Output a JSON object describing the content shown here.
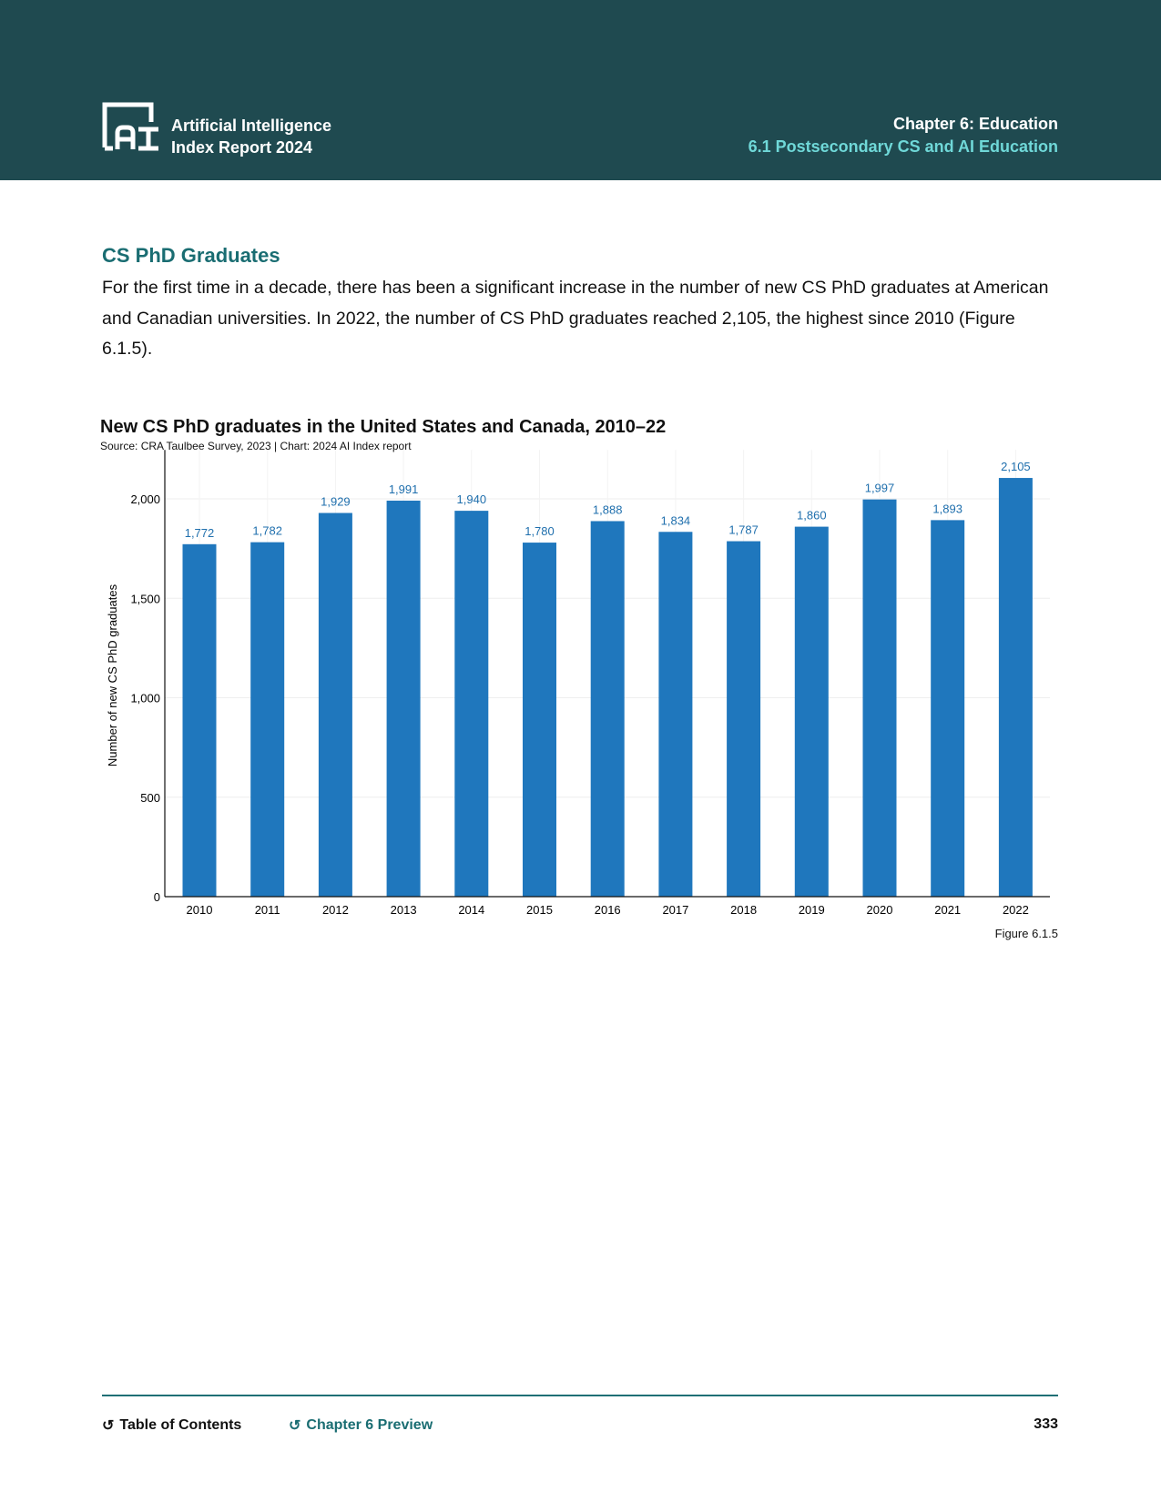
{
  "header": {
    "brand_line1": "Artificial Intelligence",
    "brand_line2": "Index Report 2024",
    "chapter": "Chapter 6: Education",
    "section": "6.1 Postsecondary CS and AI Education",
    "colors": {
      "background": "#1f4a50",
      "section": "#6fd8d8"
    }
  },
  "content": {
    "heading": "CS PhD Graduates",
    "paragraph": "For the first time in a decade, there has been a significant increase in the number of new CS PhD graduates at American and Canadian universities. In 2022, the number of CS PhD graduates reached 2,105, the highest since 2010 (Figure 6.1.5)."
  },
  "chart_data": {
    "type": "bar",
    "title": "New CS PhD graduates in the United States and Canada, 2010–22",
    "subtitle": "Source: CRA Taulbee Survey, 2023 | Chart: 2024 AI Index report",
    "xlabel": "",
    "ylabel": "Number of new CS PhD graduates",
    "categories": [
      "2010",
      "2011",
      "2012",
      "2013",
      "2014",
      "2015",
      "2016",
      "2017",
      "2018",
      "2019",
      "2020",
      "2021",
      "2022"
    ],
    "values": [
      1772,
      1782,
      1929,
      1991,
      1940,
      1780,
      1888,
      1834,
      1787,
      1860,
      1997,
      1893,
      2105
    ],
    "data_labels": [
      "1,772",
      "1,782",
      "1,929",
      "1,991",
      "1,940",
      "1,780",
      "1,888",
      "1,834",
      "1,787",
      "1,860",
      "1,997",
      "1,893",
      "2,105"
    ],
    "yticks": [
      0,
      500,
      1000,
      1500,
      2000
    ],
    "ytick_labels": [
      "0",
      "500",
      "1,000",
      "1,500",
      "2,000"
    ],
    "ylim": [
      0,
      2200
    ],
    "grid": true,
    "bar_color": "#1f77bd",
    "label_color": "#1f6fad"
  },
  "figure_label": "Figure 6.1.5",
  "footer": {
    "toc": "Table of Contents",
    "chapter_preview": "Chapter 6 Preview",
    "page": "333"
  }
}
